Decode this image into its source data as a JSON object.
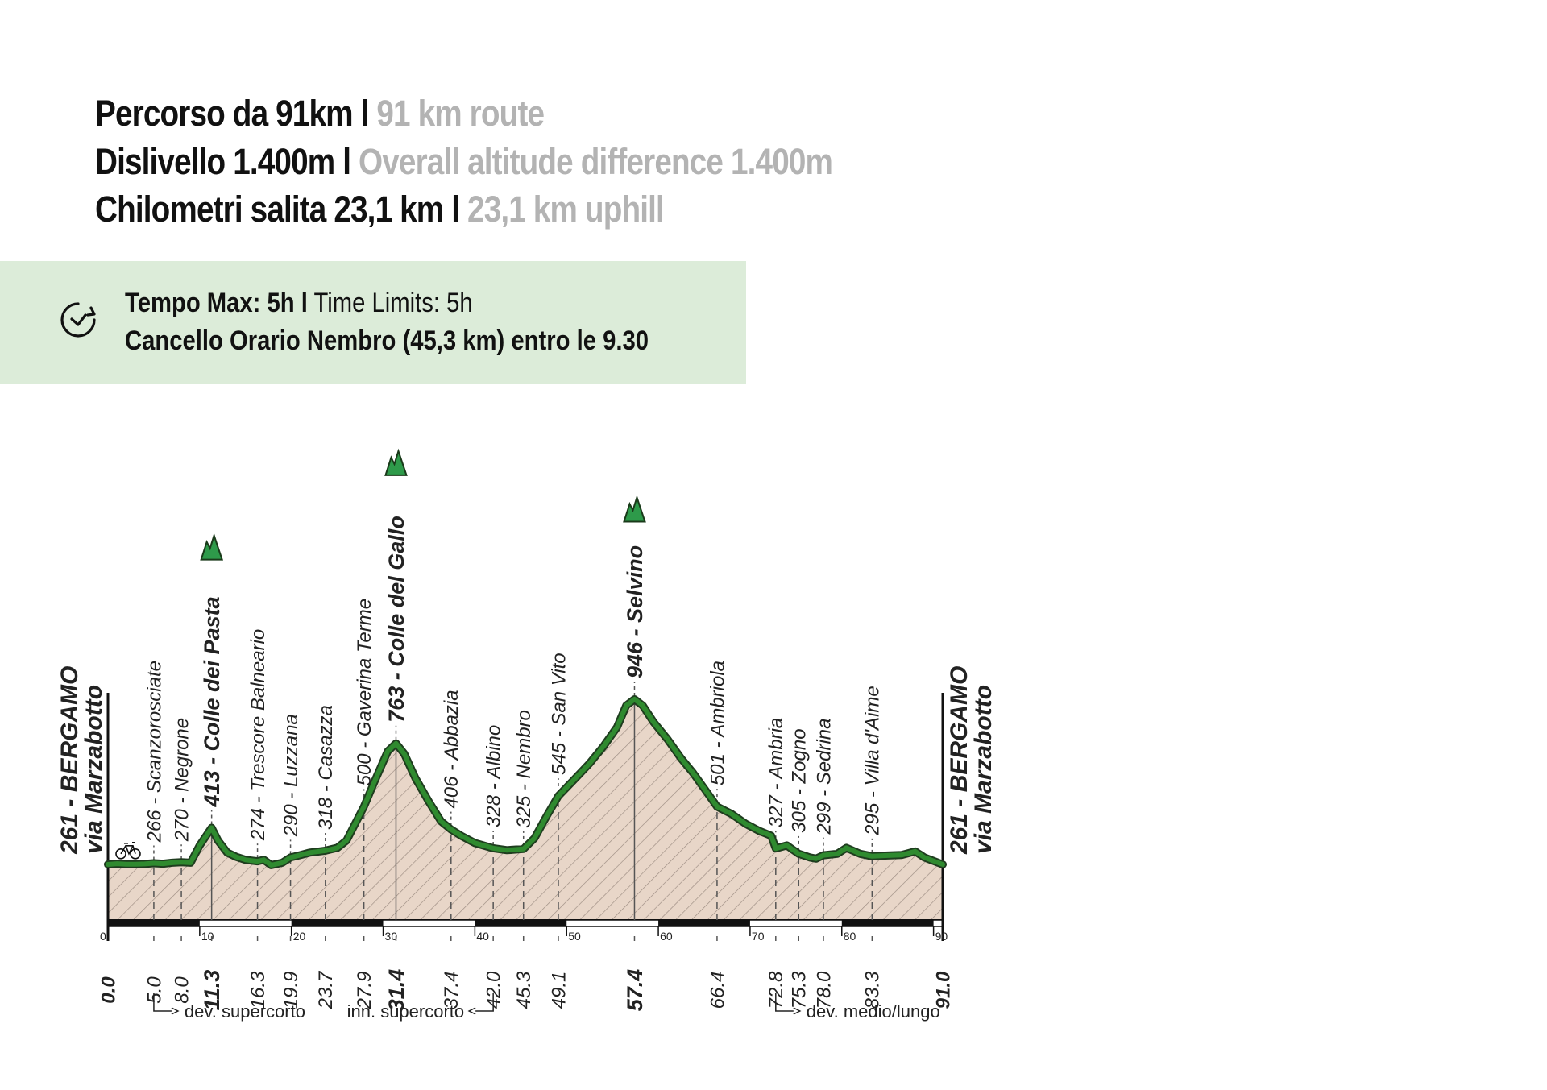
{
  "header": {
    "line1_it": "Percorso da 91km l",
    "line1_en": "91 km route",
    "line2_it": "Dislivello 1.400m l",
    "line2_en": "Overall altitude difference 1.400m",
    "line3_it": "Chilometri salita 23,1 km l",
    "line3_en": "23,1 km uphill"
  },
  "time_limits": {
    "label_it": "Tempo Max:  5h l",
    "label_en": "Time Limits: 5h",
    "checkpoint": "Cancello Orario Nembro (45,3 km) entro le 9.30",
    "icon": "clock-icon"
  },
  "chart_data": {
    "type": "area",
    "colors": {
      "line": "#2f8a2f",
      "fill": "#e8d6c8",
      "hatch": "#9a8a80",
      "peak": "#2e9a4a"
    },
    "x_ticks": [
      0,
      10,
      20,
      30,
      40,
      50,
      60,
      70,
      80,
      90
    ],
    "xlim": [
      0,
      91
    ],
    "profile": [
      [
        0,
        261
      ],
      [
        1,
        264
      ],
      [
        2,
        262
      ],
      [
        3,
        262
      ],
      [
        4,
        263
      ],
      [
        5,
        266
      ],
      [
        6,
        264
      ],
      [
        7,
        268
      ],
      [
        8,
        270
      ],
      [
        9,
        268
      ],
      [
        10,
        340
      ],
      [
        11.3,
        413
      ],
      [
        12,
        360
      ],
      [
        13,
        310
      ],
      [
        14,
        292
      ],
      [
        15,
        280
      ],
      [
        16.3,
        274
      ],
      [
        17,
        280
      ],
      [
        17.8,
        258
      ],
      [
        19,
        268
      ],
      [
        19.9,
        290
      ],
      [
        21,
        300
      ],
      [
        22,
        310
      ],
      [
        23.7,
        318
      ],
      [
        25,
        330
      ],
      [
        26,
        360
      ],
      [
        27.9,
        500
      ],
      [
        29,
        600
      ],
      [
        30.5,
        730
      ],
      [
        31.4,
        763
      ],
      [
        32.3,
        720
      ],
      [
        33.5,
        620
      ],
      [
        35,
        520
      ],
      [
        36.3,
        440
      ],
      [
        37.4,
        406
      ],
      [
        38.5,
        380
      ],
      [
        40,
        350
      ],
      [
        42,
        328
      ],
      [
        43.5,
        320
      ],
      [
        45.3,
        325
      ],
      [
        46.5,
        370
      ],
      [
        47.8,
        460
      ],
      [
        49.1,
        545
      ],
      [
        51,
        620
      ],
      [
        52.5,
        680
      ],
      [
        54,
        750
      ],
      [
        55.5,
        830
      ],
      [
        56.5,
        920
      ],
      [
        57.4,
        946
      ],
      [
        58.3,
        920
      ],
      [
        59.5,
        850
      ],
      [
        61,
        780
      ],
      [
        62.5,
        700
      ],
      [
        63.8,
        640
      ],
      [
        65.3,
        560
      ],
      [
        66.4,
        501
      ],
      [
        68,
        470
      ],
      [
        69.5,
        430
      ],
      [
        71,
        400
      ],
      [
        72.3,
        380
      ],
      [
        72.8,
        327
      ],
      [
        74,
        340
      ],
      [
        75.3,
        305
      ],
      [
        76.5,
        290
      ],
      [
        77.2,
        285
      ],
      [
        78,
        299
      ],
      [
        79.5,
        305
      ],
      [
        80.5,
        330
      ],
      [
        82,
        305
      ],
      [
        83.3,
        295
      ],
      [
        85,
        298
      ],
      [
        86.5,
        300
      ],
      [
        88,
        315
      ],
      [
        89,
        290
      ],
      [
        91,
        261
      ]
    ],
    "waypoints": [
      {
        "km": 5.0,
        "alt": 266,
        "label": "266 - Scanzorosciate",
        "km_label": "5.0",
        "bold": false
      },
      {
        "km": 8.0,
        "alt": 270,
        "label": "270 - Negrone",
        "km_label": "8.0",
        "bold": false
      },
      {
        "km": 11.3,
        "alt": 413,
        "label": "413 - Colle dei Pasta",
        "km_label": "11.3",
        "bold": true
      },
      {
        "km": 16.3,
        "alt": 274,
        "label": "274 - Trescore Balneario",
        "km_label": "16.3",
        "bold": false
      },
      {
        "km": 19.9,
        "alt": 290,
        "label": "290 - Luzzana",
        "km_label": "19.9",
        "bold": false
      },
      {
        "km": 23.7,
        "alt": 318,
        "label": "318 - Casazza",
        "km_label": "23.7",
        "bold": false
      },
      {
        "km": 27.9,
        "alt": 500,
        "label": "500 - Gaverina Terme",
        "km_label": "27.9",
        "bold": false
      },
      {
        "km": 31.4,
        "alt": 763,
        "label": "763 - Colle del Gallo",
        "km_label": "31.4",
        "bold": true
      },
      {
        "km": 37.4,
        "alt": 406,
        "label": "406 - Abbazia",
        "km_label": "37.4",
        "bold": false
      },
      {
        "km": 42.0,
        "alt": 328,
        "label": "328 - Albino",
        "km_label": "42.0",
        "bold": false
      },
      {
        "km": 45.3,
        "alt": 325,
        "label": "325 - Nembro",
        "km_label": "45.3",
        "bold": false
      },
      {
        "km": 49.1,
        "alt": 545,
        "label": "545 - San Vito",
        "km_label": "49.1",
        "bold": false
      },
      {
        "km": 57.4,
        "alt": 946,
        "label": "946 - Selvino",
        "km_label": "57.4",
        "bold": true
      },
      {
        "km": 66.4,
        "alt": 501,
        "label": "501 - Ambriola",
        "km_label": "66.4",
        "bold": false
      },
      {
        "km": 72.8,
        "alt": 327,
        "label": "327 - Ambria",
        "km_label": "72.8",
        "bold": false
      },
      {
        "km": 75.3,
        "alt": 305,
        "label": "305 - Zogno",
        "km_label": "75.3",
        "bold": false
      },
      {
        "km": 78.0,
        "alt": 299,
        "label": "299 - Sedrina",
        "km_label": "78.0",
        "bold": false
      },
      {
        "km": 83.3,
        "alt": 295,
        "label": "295 - Villa d'Aime",
        "km_label": "83.3",
        "bold": false
      }
    ],
    "start": {
      "km": 0,
      "km_label": "0.0",
      "line1": "261 - BERGAMO",
      "line2": "via Marzabotto"
    },
    "finish": {
      "km": 91,
      "km_label": "91.0",
      "line1": "261 - BERGAMO",
      "line2": "via Marzabotto"
    },
    "peaks": [
      11.3,
      31.4,
      57.4
    ],
    "deviations": [
      {
        "label": "dev. supercorto",
        "km": 5.0
      },
      {
        "label": "inn. supercorto",
        "km": 42.0
      },
      {
        "label": "dev. medio/lungo",
        "km": 72.8
      }
    ],
    "start_icon": "bicycle-icon"
  }
}
